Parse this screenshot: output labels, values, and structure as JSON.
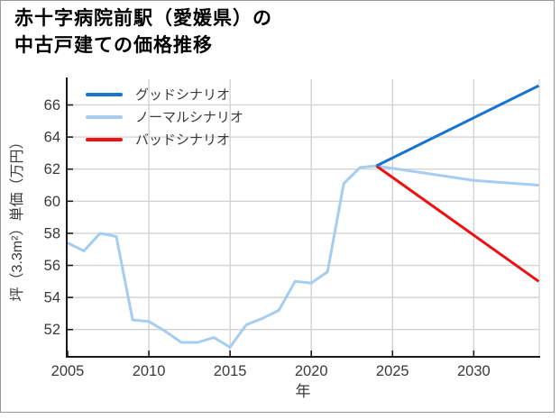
{
  "title": {
    "line1": "赤十字病院前駅（愛媛県）の",
    "line2": "中古戸建ての価格推移"
  },
  "chart_data": {
    "type": "line",
    "title": "赤十字病院前駅（愛媛県）の中古戸建ての価格推移",
    "xlabel": "年",
    "ylabel": "坪（3.3m²）単価（万円）",
    "xlim": [
      2005,
      2034.7
    ],
    "ylim": [
      50.3,
      67.6
    ],
    "xticks": [
      2005,
      2010,
      2015,
      2020,
      2025,
      2030
    ],
    "yticks": [
      52,
      54,
      56,
      58,
      60,
      62,
      64,
      66
    ],
    "grid": true,
    "legend_position": "upper-left",
    "colors": {
      "axis": "#1a1a1a",
      "grid": "#d3d3d3",
      "tick_label": "#3a3a3a",
      "good": "#1874cd",
      "normal": "#a5cdf0",
      "bad": "#ee1111"
    },
    "series": [
      {
        "name": "グッドシナリオ",
        "color": "#1874cd",
        "x": [
          2024,
          2034
        ],
        "values": [
          62.2,
          67.2
        ]
      },
      {
        "name": "ノーマルシナリオ",
        "color": "#a5cdf0",
        "x": [
          2005,
          2006,
          2007,
          2008,
          2009,
          2010,
          2011,
          2012,
          2013,
          2014,
          2015,
          2016,
          2017,
          2018,
          2019,
          2020,
          2021,
          2022,
          2023,
          2024,
          2030,
          2034
        ],
        "values": [
          57.4,
          56.9,
          58.0,
          57.8,
          52.6,
          52.5,
          51.9,
          51.2,
          51.2,
          51.5,
          50.9,
          52.3,
          52.7,
          53.2,
          55.0,
          54.9,
          55.6,
          61.1,
          62.1,
          62.2,
          61.3,
          61.0
        ]
      },
      {
        "name": "バッドシナリオ",
        "color": "#ee1111",
        "x": [
          2024,
          2034
        ],
        "values": [
          62.2,
          55.0
        ]
      }
    ]
  }
}
